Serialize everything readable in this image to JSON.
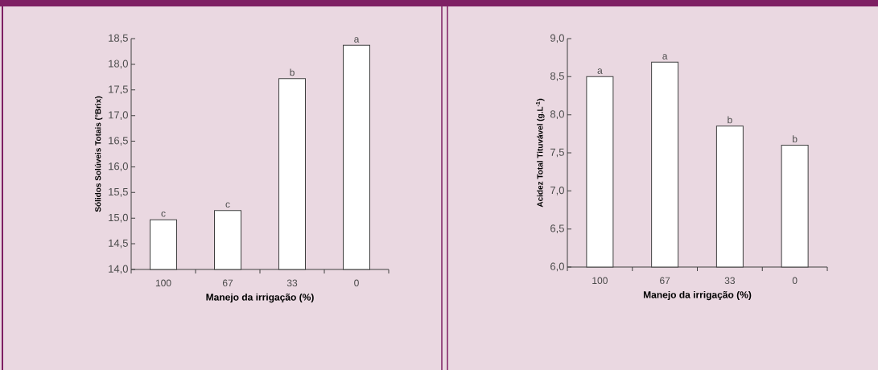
{
  "chart_data": [
    {
      "type": "bar",
      "categories": [
        "100",
        "67",
        "33",
        "0"
      ],
      "values": [
        14.97,
        15.15,
        17.72,
        18.37
      ],
      "color": "#ffffff",
      "xlabel": "Manejo da irrigação (%)",
      "ylabel": "Sólidos Solúveis Totais (°Brix)",
      "ylim": [
        14.0,
        18.5
      ],
      "yticks": [
        {
          "value": 14.0,
          "label": "14,0"
        },
        {
          "value": 14.5,
          "label": "14,5"
        },
        {
          "value": 15.0,
          "label": "15,0"
        },
        {
          "value": 15.5,
          "label": "15,5"
        },
        {
          "value": 16.0,
          "label": "16,0"
        },
        {
          "value": 16.5,
          "label": "16,5"
        },
        {
          "value": 17.0,
          "label": "17,0"
        },
        {
          "value": 17.5,
          "label": "17,5"
        },
        {
          "value": 18.0,
          "label": "18,0"
        },
        {
          "value": 18.5,
          "label": "18,5"
        }
      ],
      "annotations": [
        {
          "text": "c",
          "x": "100",
          "y": 14.97
        },
        {
          "text": "c",
          "x": "67",
          "y": 15.15
        },
        {
          "text": "b",
          "x": "33",
          "y": 17.72
        },
        {
          "text": "a",
          "x": "0",
          "y": 18.37
        }
      ]
    },
    {
      "type": "bar",
      "categories": [
        "100",
        "67",
        "33",
        "0"
      ],
      "values": [
        8.5,
        8.69,
        7.85,
        7.6
      ],
      "color": "#ffffff",
      "xlabel": "Manejo da irrigação (%)",
      "ylabel": "Acidez Total Tituvável (g.L$^{-1}$)",
      "ylim": [
        6.0,
        9.0
      ],
      "yticks": [
        {
          "value": 6.0,
          "label": "6,0"
        },
        {
          "value": 6.5,
          "label": "6,5"
        },
        {
          "value": 7.0,
          "label": "7,0"
        },
        {
          "value": 7.5,
          "label": "7,5"
        },
        {
          "value": 8.0,
          "label": "8,0"
        },
        {
          "value": 8.5,
          "label": "8,5"
        },
        {
          "value": 9.0,
          "label": "9,0"
        }
      ],
      "annotations": [
        {
          "text": "a",
          "x": "100",
          "y": 8.5
        },
        {
          "text": "a",
          "x": "67",
          "y": 8.69
        },
        {
          "text": "b",
          "x": "33",
          "y": 7.85
        },
        {
          "text": "b",
          "x": "0",
          "y": 7.6
        }
      ]
    }
  ]
}
